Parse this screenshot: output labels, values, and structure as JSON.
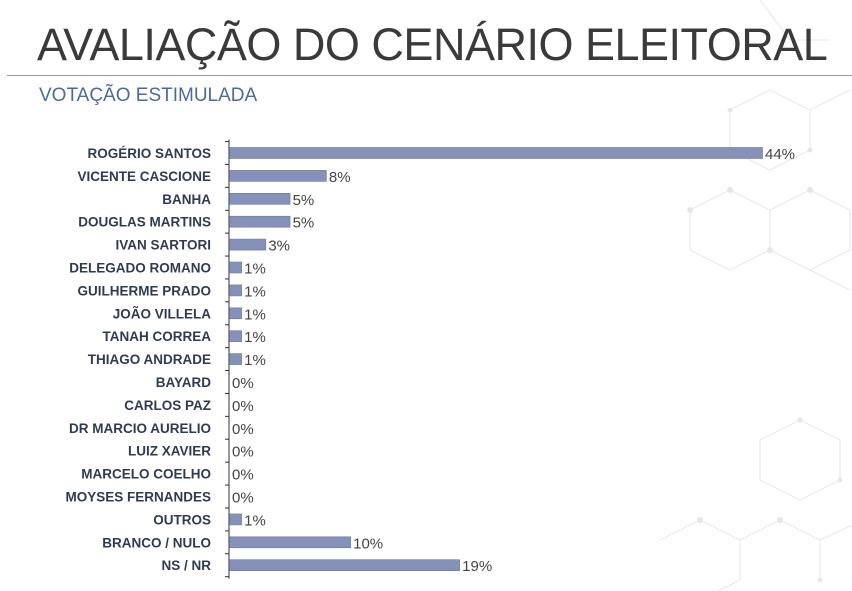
{
  "title": "AVALIAÇÃO DO CENÁRIO ELEITORAL",
  "subtitle": "VOTAÇÃO ESTIMULADA",
  "colors": {
    "bar": "#8591b8",
    "bar_stroke": "#6d7aa3",
    "title": "#3a3a3a",
    "subtitle": "#4a6aa0",
    "category_text": "#2f3b52",
    "value_text": "#444444"
  },
  "chart_data": {
    "type": "bar",
    "orientation": "horizontal",
    "title": "AVALIAÇÃO DO CENÁRIO ELEITORAL",
    "subtitle": "VOTAÇÃO ESTIMULADA",
    "categories": [
      "ROGÉRIO SANTOS",
      "VICENTE CASCIONE",
      "BANHA",
      "DOUGLAS MARTINS",
      "IVAN SARTORI",
      "DELEGADO ROMANO",
      "GUILHERME PRADO",
      "JOÃO VILLELA",
      "TANAH CORREA",
      "THIAGO ANDRADE",
      "BAYARD",
      "CARLOS PAZ",
      "DR MARCIO AURELIO",
      "LUIZ XAVIER",
      "MARCELO COELHO",
      "MOYSES FERNANDES",
      "OUTROS",
      "BRANCO / NULO",
      "NS / NR"
    ],
    "values": [
      44,
      8,
      5,
      5,
      3,
      1,
      1,
      1,
      1,
      1,
      0,
      0,
      0,
      0,
      0,
      0,
      1,
      10,
      19
    ],
    "value_labels": [
      "44%",
      "8%",
      "5%",
      "5%",
      "3%",
      "1%",
      "1%",
      "1%",
      "1%",
      "1%",
      "0%",
      "0%",
      "0%",
      "0%",
      "0%",
      "0%",
      "1%",
      "10%",
      "19%"
    ],
    "unit": "%",
    "xlim": [
      0,
      44
    ],
    "xlabel": "",
    "ylabel": "",
    "grid": false,
    "legend": "none"
  }
}
